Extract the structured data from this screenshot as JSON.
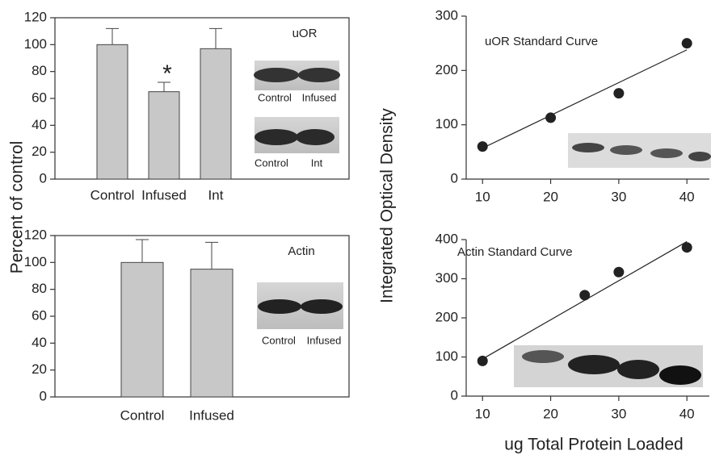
{
  "chart_data": [
    {
      "type": "bar",
      "ylabel": "Percent of control",
      "annotation": "uOR",
      "significance": "*",
      "categories": [
        "Control",
        "Infused",
        "Int"
      ],
      "values": [
        100,
        65,
        97
      ],
      "errors": [
        12,
        7,
        15
      ],
      "color": "#c8c8c8",
      "ylim": [
        0,
        120
      ],
      "yticks": [
        0,
        20,
        40,
        60,
        80,
        100,
        120
      ],
      "insets": [
        {
          "labels": [
            "Control",
            "Infused"
          ]
        },
        {
          "labels": [
            "Control",
            "Int"
          ]
        }
      ]
    },
    {
      "type": "bar",
      "annotation": "Actin",
      "categories": [
        "Control",
        "Infused"
      ],
      "values": [
        100,
        95
      ],
      "errors": [
        17,
        20
      ],
      "color": "#c8c8c8",
      "ylim": [
        0,
        120
      ],
      "yticks": [
        0,
        20,
        40,
        60,
        80,
        100,
        120
      ],
      "insets": [
        {
          "labels": [
            "Control",
            "Infused"
          ]
        }
      ]
    },
    {
      "type": "scatter",
      "title": "uOR Standard Curve",
      "ylabel": "Integrated Optical Density",
      "x": [
        10,
        20,
        30,
        40
      ],
      "y": [
        60,
        113,
        158,
        250
      ],
      "fit_x": [
        10,
        40
      ],
      "fit_y": [
        57,
        238
      ],
      "color": "#222222",
      "xlim": [
        7.6,
        43.3
      ],
      "xticks": [
        10,
        20,
        30,
        40
      ],
      "ylim": [
        0,
        300
      ],
      "yticks": [
        0,
        100,
        200,
        300
      ]
    },
    {
      "type": "scatter",
      "title": "Actin Standard Curve",
      "xlabel": "ug Total Protein Loaded",
      "x": [
        10,
        25,
        30,
        40
      ],
      "y": [
        90,
        258,
        317,
        380
      ],
      "fit_x": [
        10,
        40
      ],
      "fit_y": [
        95,
        395
      ],
      "color": "#222222",
      "xlim": [
        7.6,
        43.3
      ],
      "xticks": [
        10,
        20,
        30,
        40
      ],
      "ylim": [
        0,
        400
      ],
      "yticks": [
        0,
        100,
        200,
        300,
        400
      ]
    }
  ]
}
